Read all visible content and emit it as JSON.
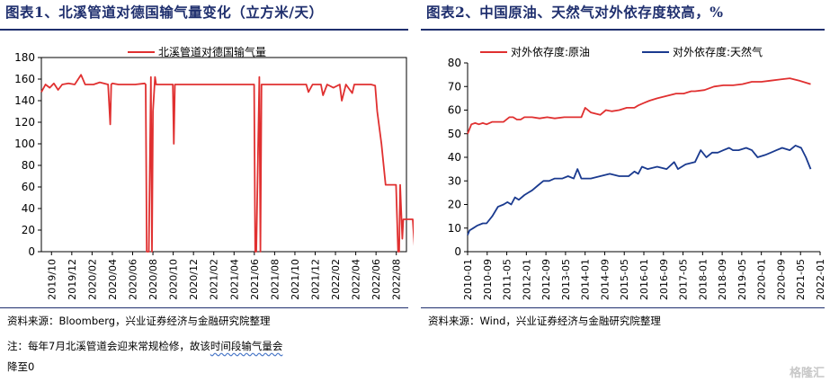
{
  "left": {
    "title": "图表1、北溪管道对德国输气量变化（立方米/天）",
    "source": "资料来源：Bloomberg，兴业证券经济与金融研究院整理",
    "note_part1": "注：每年7月北溪管道会迎来常规检修，故该",
    "note_part2": "时间段输气量会",
    "note_part3": "降至0",
    "legend": "北溪管道对德国输气量",
    "colors": {
      "line": "#e03030",
      "title": "#1f2f6e"
    }
  },
  "right": {
    "title": "图表2、中国原油、天然气对外依存度较高，%",
    "source": "资料来源：Wind，兴业证券经济与金融研究院整理",
    "colors": {
      "crude": "#e03030",
      "gas": "#1a3a8f",
      "title": "#1f2f6e"
    }
  },
  "watermark": "格隆汇",
  "chart_data": [
    {
      "type": "line",
      "ylim": [
        0,
        180
      ],
      "yticks": [
        0,
        20,
        40,
        60,
        80,
        100,
        120,
        140,
        160,
        180
      ],
      "x_categories": [
        "2019/10",
        "2019/12",
        "2020/02",
        "2020/04",
        "2020/06",
        "2020/08",
        "2020/10",
        "2020/12",
        "2021/02",
        "2021/04",
        "2021/06",
        "2021/08",
        "2021/10",
        "2021/12",
        "2022/02",
        "2022/04",
        "2022/06",
        "2022/08"
      ],
      "series": [
        {
          "name": "北溪管道对德国输气量",
          "x": [
            0,
            0.2,
            0.4,
            0.6,
            0.8,
            1,
            1.3,
            1.6,
            1.9,
            2.1,
            2.5,
            2.8,
            3.2,
            3.3,
            3.35,
            3.4,
            3.7,
            4,
            4.5,
            4.95,
            5.0,
            5.05,
            5.15,
            5.25,
            5.3,
            5.35,
            5.45,
            5.5,
            6.0,
            6.3,
            6.35,
            6.4,
            7,
            8,
            9,
            10.2,
            10.25,
            10.3,
            10.45,
            10.5,
            10.55,
            11,
            12,
            12.7,
            12.8,
            13,
            13.4,
            13.5,
            13.7,
            14,
            14.3,
            14.4,
            14.6,
            14.9,
            15,
            15.5,
            15.8,
            16,
            16.1,
            16.3,
            16.5,
            16.6,
            17.0,
            17.1,
            17.15,
            17.2,
            17.3,
            17.35,
            17.4,
            17.8,
            17.9
          ],
          "y": [
            148,
            155,
            152,
            156,
            150,
            155,
            156,
            155,
            164,
            155,
            155,
            157,
            155,
            118,
            155,
            156,
            155,
            155,
            155,
            156,
            155,
            0,
            0,
            162,
            0,
            130,
            162,
            155,
            155,
            155,
            100,
            155,
            155,
            155,
            155,
            155,
            0,
            0,
            162,
            0,
            155,
            155,
            155,
            155,
            148,
            155,
            155,
            145,
            155,
            152,
            155,
            140,
            155,
            147,
            155,
            155,
            155,
            154,
            130,
            100,
            62,
            62,
            62,
            0,
            0,
            62,
            12,
            30,
            30,
            30,
            0
          ]
        }
      ]
    },
    {
      "type": "line",
      "ylim": [
        0,
        80
      ],
      "yticks": [
        0,
        10,
        20,
        30,
        40,
        50,
        60,
        70,
        80
      ],
      "x_labels": [
        "2010-01",
        "2010-09",
        "2011-05",
        "2012-01",
        "2012-09",
        "2013-05",
        "2014-01",
        "2014-09",
        "2015-05",
        "2016-01",
        "2016-09",
        "2017-05",
        "2018-01",
        "2018-09",
        "2019-05",
        "2020-01",
        "2020-09",
        "2021-05",
        "2022-01"
      ],
      "series": [
        {
          "name": "对外依存度:原油",
          "x": [
            0,
            0.05,
            0.2,
            0.4,
            0.6,
            0.8,
            1,
            1.3,
            1.6,
            1.9,
            2.2,
            2.4,
            2.6,
            2.8,
            3,
            3.4,
            3.8,
            4.2,
            4.6,
            5.1,
            5.3,
            5.6,
            6,
            6.2,
            6.5,
            7,
            7.3,
            7.6,
            8,
            8.4,
            8.8,
            9,
            9.3,
            9.6,
            10,
            10.5,
            11,
            11.4,
            11.8,
            12,
            12.5,
            13,
            13.5,
            14,
            14.5,
            15,
            15.5,
            16,
            16.5,
            17,
            17.5,
            18.1
          ],
          "y": [
            50,
            51,
            54,
            54.5,
            54,
            54.5,
            54,
            55,
            55,
            55,
            57,
            57,
            56,
            56,
            57,
            57,
            56.5,
            57,
            56.5,
            57,
            57,
            57,
            57,
            61,
            59,
            58,
            60,
            59.5,
            60,
            61,
            61,
            62,
            63,
            64,
            65,
            66,
            67,
            67,
            68,
            68,
            68.5,
            70,
            70.5,
            70.5,
            71,
            72,
            72,
            72.5,
            73,
            73.5,
            72.5,
            71
          ]
        },
        {
          "name": "对外依存度:天然气",
          "x": [
            0,
            0.1,
            0.3,
            0.5,
            0.8,
            1,
            1.3,
            1.6,
            1.9,
            2.1,
            2.3,
            2.5,
            2.7,
            3,
            3.2,
            3.4,
            3.7,
            4,
            4.3,
            4.6,
            5,
            5.3,
            5.6,
            5.8,
            6,
            6.2,
            6.5,
            7,
            7.5,
            8,
            8.5,
            8.8,
            9,
            9.2,
            9.5,
            10,
            10.5,
            10.9,
            11.1,
            11.5,
            12,
            12.3,
            12.6,
            12.9,
            13.2,
            13.5,
            13.8,
            14,
            14.3,
            14.7,
            15,
            15.3,
            15.7,
            16,
            16.3,
            16.6,
            17,
            17.3,
            17.6,
            17.85,
            18.1
          ],
          "y": [
            7,
            9,
            10,
            11,
            12,
            12,
            15,
            19,
            20,
            21,
            20,
            23,
            22,
            24,
            25,
            26,
            28,
            30,
            30,
            31,
            31,
            32,
            31,
            35,
            31,
            31,
            31,
            32,
            33,
            32,
            32,
            34,
            33,
            36,
            35,
            36,
            35,
            38,
            35,
            37,
            38,
            43,
            40,
            42,
            42,
            43,
            44,
            43,
            43,
            44,
            43,
            40,
            41,
            42,
            43,
            44,
            43,
            45,
            44,
            40,
            35
          ]
        }
      ]
    }
  ]
}
